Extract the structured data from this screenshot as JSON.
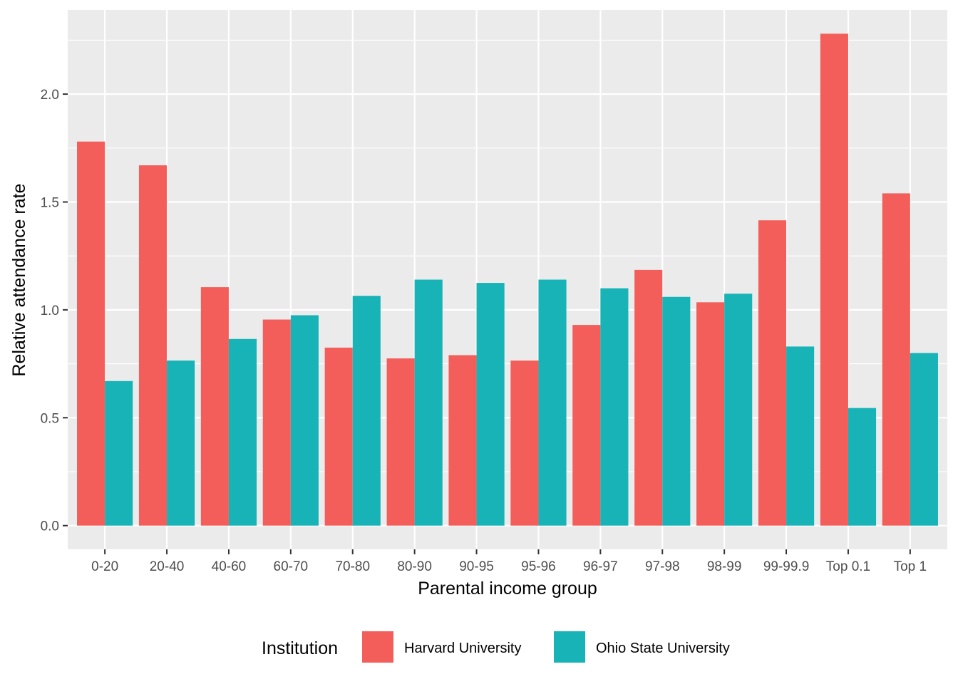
{
  "chart_data": {
    "type": "bar",
    "xlabel": "Parental income group",
    "ylabel": "Relative attendance rate",
    "categories": [
      "0-20",
      "20-40",
      "40-60",
      "60-70",
      "70-80",
      "80-90",
      "90-95",
      "95-96",
      "96-97",
      "97-98",
      "98-99",
      "99-99.9",
      "Top 0.1",
      "Top 1"
    ],
    "series": [
      {
        "name": "Harvard University",
        "color": "#F8766D",
        "fill": "#F35E5A",
        "values": [
          1.78,
          1.67,
          1.105,
          0.955,
          0.825,
          0.775,
          0.79,
          0.765,
          0.93,
          1.185,
          1.035,
          1.415,
          2.28,
          1.54
        ]
      },
      {
        "name": "Ohio State University",
        "color": "#00BFC4",
        "fill": "#17B3B7",
        "values": [
          0.67,
          0.765,
          0.865,
          0.975,
          1.065,
          1.14,
          1.125,
          1.14,
          1.1,
          1.06,
          1.075,
          0.83,
          0.545,
          0.8
        ]
      }
    ],
    "ylim": [
      -0.11,
      2.39
    ],
    "yticks": [
      0.0,
      0.5,
      1.0,
      1.5,
      2.0
    ],
    "ytick_labels": [
      "0.0",
      "0.5",
      "1.0",
      "1.5",
      "2.0"
    ],
    "grid": true,
    "legend": {
      "title": "Institution",
      "position": "bottom"
    }
  }
}
